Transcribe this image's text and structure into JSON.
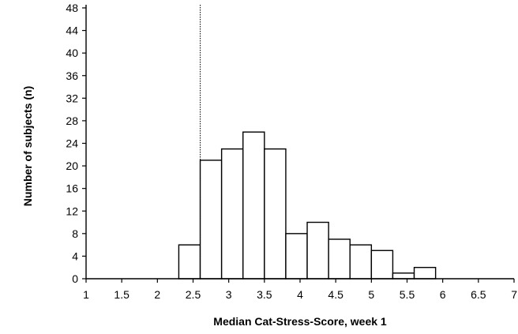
{
  "chart_data": {
    "type": "bar",
    "xlabel": "Median Cat-Stress-Score, week 1",
    "ylabel": "Number of subjects (n)",
    "xlim": [
      1,
      7
    ],
    "ylim": [
      0,
      48
    ],
    "xticks": [
      "1",
      "1.5",
      "2",
      "2.5",
      "3",
      "3.5",
      "4",
      "4.5",
      "5",
      "5.5",
      "6",
      "6.5",
      "7"
    ],
    "yticks": [
      "0",
      "4",
      "8",
      "12",
      "16",
      "20",
      "24",
      "28",
      "32",
      "36",
      "40",
      "44",
      "48"
    ],
    "bin_width": 0.3,
    "bins": [
      {
        "start": 2.3,
        "end": 2.6,
        "count": 6
      },
      {
        "start": 2.6,
        "end": 2.9,
        "count": 21
      },
      {
        "start": 2.9,
        "end": 3.2,
        "count": 23
      },
      {
        "start": 3.2,
        "end": 3.5,
        "count": 26
      },
      {
        "start": 3.5,
        "end": 3.8,
        "count": 23
      },
      {
        "start": 3.8,
        "end": 4.1,
        "count": 8
      },
      {
        "start": 4.1,
        "end": 4.4,
        "count": 10
      },
      {
        "start": 4.4,
        "end": 4.7,
        "count": 7
      },
      {
        "start": 4.7,
        "end": 5.0,
        "count": 6
      },
      {
        "start": 5.0,
        "end": 5.3,
        "count": 5
      },
      {
        "start": 5.3,
        "end": 5.6,
        "count": 1
      },
      {
        "start": 5.6,
        "end": 5.9,
        "count": 2
      }
    ],
    "reference_line_x": 2.6,
    "grid": false
  }
}
